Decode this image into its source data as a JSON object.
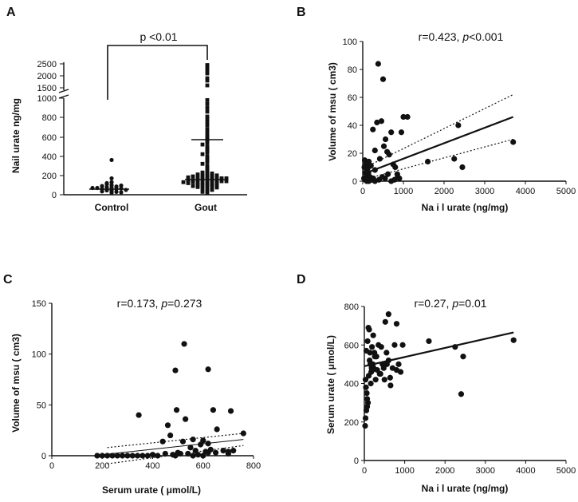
{
  "chart_data": [
    {
      "type": "scatter",
      "panel": "A",
      "ylabel": "Nail urate ng/mg",
      "categories": [
        "Control",
        "Gout"
      ],
      "yticks_lower": [
        "0",
        "200",
        "400",
        "600",
        "800",
        "1000"
      ],
      "yticks_upper": [
        "1500",
        "2000",
        "2500"
      ],
      "significance": "p <0.01",
      "summary": {
        "control_median": 60,
        "gout_median": 160,
        "gout_upper": 570
      },
      "control": [
        40,
        45,
        50,
        55,
        60,
        60,
        65,
        70,
        75,
        80,
        85,
        90,
        95,
        30,
        35,
        50,
        70,
        100,
        130,
        170,
        360,
        20,
        25,
        110,
        120
      ],
      "gout": [
        2450,
        2400,
        2300,
        2200,
        2100,
        1900,
        1800,
        1600,
        980,
        940,
        900,
        860,
        810,
        780,
        750,
        720,
        680,
        650,
        620,
        600,
        580,
        560,
        540,
        520,
        500,
        480,
        460,
        440,
        420,
        400,
        380,
        360,
        340,
        320,
        300,
        280,
        260,
        240,
        230,
        220,
        210,
        200,
        195,
        190,
        185,
        180,
        175,
        170,
        165,
        160,
        155,
        150,
        145,
        140,
        135,
        130,
        125,
        120,
        115,
        110,
        105,
        100,
        95,
        90,
        85,
        80,
        75,
        70,
        60,
        50,
        40,
        30,
        20,
        210,
        190,
        170,
        150,
        130,
        160,
        140,
        120,
        180,
        200,
        150,
        140,
        130,
        170,
        160,
        100,
        90
      ]
    },
    {
      "type": "scatter",
      "panel": "B",
      "stat": "r=0.423, p<0.001",
      "stat_parts": [
        "r=0.423, ",
        "p",
        "<0.001"
      ],
      "xlabel": "Na i l urate (ng/mg)",
      "ylabel": "Volume of msu ( cm3)",
      "xlim": [
        0,
        5000
      ],
      "ylim": [
        0,
        100
      ],
      "xticks": [
        0,
        1000,
        2000,
        3000,
        4000,
        5000
      ],
      "yticks": [
        0,
        20,
        40,
        60,
        80,
        100
      ],
      "x": [
        380,
        500,
        50,
        80,
        120,
        150,
        200,
        250,
        300,
        350,
        420,
        460,
        520,
        560,
        600,
        650,
        700,
        750,
        800,
        850,
        900,
        950,
        1000,
        1100,
        1600,
        2250,
        2350,
        2450,
        3700,
        30,
        60,
        100,
        140,
        180,
        220,
        260,
        300,
        400,
        480,
        550,
        620,
        700,
        780,
        860,
        100,
        200,
        300,
        150,
        60,
        40
      ],
      "y": [
        84,
        73,
        15,
        12,
        9,
        14,
        11,
        37,
        22,
        42,
        16,
        43,
        25,
        30,
        21,
        19,
        35,
        12,
        10,
        5,
        2,
        35,
        46,
        46,
        14,
        16,
        40,
        10,
        28,
        2,
        1,
        4,
        6,
        3,
        1,
        2,
        0,
        1,
        3,
        2,
        5,
        0,
        1,
        3,
        0,
        1,
        8,
        0,
        6,
        10
      ],
      "fit": {
        "x": [
          0,
          3700
        ],
        "y": [
          5,
          46
        ]
      },
      "ci_upper": {
        "x": [
          0,
          3700
        ],
        "y": [
          9,
          62
        ]
      },
      "ci_lower": {
        "x": [
          0,
          3700
        ],
        "y": [
          1,
          30
        ]
      }
    },
    {
      "type": "scatter",
      "panel": "C",
      "stat": "r=0.173, p=0.273",
      "stat_parts": [
        "r=0.173, ",
        "p",
        "=0.273"
      ],
      "xlabel": "Serum urate ( μmol/L)",
      "ylabel": "Volume of msu ( cm3)",
      "xlim": [
        0,
        800
      ],
      "ylim": [
        0,
        150
      ],
      "xticks": [
        0,
        200,
        400,
        600,
        800
      ],
      "yticks": [
        0,
        50,
        100,
        150
      ],
      "x": [
        525,
        490,
        620,
        345,
        495,
        530,
        470,
        460,
        520,
        640,
        710,
        440,
        560,
        600,
        655,
        590,
        620,
        680,
        550,
        760,
        180,
        200,
        220,
        240,
        260,
        280,
        300,
        320,
        340,
        360,
        380,
        400,
        420,
        450,
        480,
        500,
        540,
        570,
        610,
        630,
        650,
        700,
        720,
        560,
        580,
        510,
        490,
        600,
        620,
        700
      ],
      "y": [
        110,
        84,
        85,
        40,
        45,
        36,
        20,
        30,
        14,
        45,
        44,
        14,
        16,
        15,
        26,
        11,
        12,
        5,
        8,
        22,
        0,
        0,
        0,
        0,
        0,
        0,
        0,
        0,
        0,
        0,
        0,
        1,
        0,
        2,
        1,
        3,
        2,
        5,
        4,
        6,
        3,
        2,
        5,
        0,
        1,
        2,
        0,
        0,
        3,
        4
      ],
      "fit": {
        "x": [
          200,
          760
        ],
        "y": [
          1,
          16
        ]
      },
      "ci_upper": {
        "x": [
          220,
          760
        ],
        "y": [
          8,
          22
        ]
      },
      "ci_lower": {
        "x": [
          220,
          760
        ],
        "y": [
          -8,
          10
        ]
      }
    },
    {
      "type": "scatter",
      "panel": "D",
      "stat": "r=0.27, p=0.01",
      "stat_parts": [
        "r=0.27, ",
        "p",
        "=0.01"
      ],
      "xlabel": "Na i l urate (ng/mg)",
      "ylabel": "Serum urate ( μmol/L)",
      "xlim": [
        0,
        5000
      ],
      "ylim": [
        0,
        800
      ],
      "xticks": [
        0,
        1000,
        2000,
        3000,
        4000,
        5000
      ],
      "yticks": [
        0,
        200,
        400,
        600,
        800
      ],
      "x": [
        600,
        520,
        800,
        950,
        1600,
        2250,
        3700,
        2450,
        2400,
        50,
        80,
        100,
        120,
        150,
        180,
        200,
        220,
        250,
        300,
        350,
        400,
        450,
        500,
        550,
        600,
        650,
        700,
        750,
        800,
        850,
        900,
        30,
        40,
        60,
        70,
        90,
        110,
        130,
        140,
        160,
        170,
        190,
        210,
        230,
        260,
        280,
        320,
        380,
        420,
        480,
        560,
        640,
        20,
        30,
        50,
        70
      ],
      "y": [
        760,
        720,
        710,
        600,
        620,
        590,
        625,
        540,
        345,
        570,
        620,
        690,
        680,
        500,
        480,
        470,
        650,
        560,
        540,
        600,
        450,
        500,
        420,
        560,
        520,
        390,
        480,
        600,
        470,
        500,
        460,
        420,
        380,
        350,
        320,
        300,
        440,
        520,
        560,
        400,
        460,
        590,
        500,
        480,
        540,
        420,
        470,
        450,
        590,
        480,
        500,
        430,
        180,
        220,
        260,
        280
      ],
      "fit": {
        "x": [
          0,
          3700
        ],
        "y": [
          490,
          665
        ]
      }
    }
  ]
}
